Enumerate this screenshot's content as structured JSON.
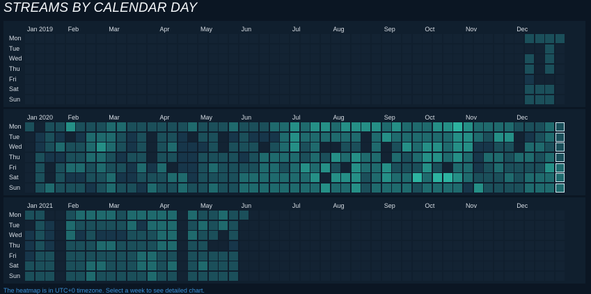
{
  "title": "STREAMS BY CALENDAR DAY",
  "footer": "The heatmap is in UTC+0 timezone. Select a week to see detailed chart.",
  "colors": {
    "background": "#0b1623",
    "panel": "#101f2e",
    "empty_cell": "#132333",
    "scale": [
      "#17364a",
      "#1b4f5a",
      "#1f6a6d",
      "#258f86",
      "#2db3a0",
      "#35d8b6"
    ],
    "selected_outline": "#cfe8f0",
    "footer_text": "#3a8fd6"
  },
  "chart_data": {
    "type": "heatmap",
    "title": "STREAMS BY CALENDAR DAY",
    "value_scale": [
      0,
      6
    ],
    "day_labels": [
      "Mon",
      "Tue",
      "Wed",
      "Thu",
      "Fri",
      "Sat",
      "Sun"
    ],
    "years": [
      {
        "year": 2019,
        "month_labels": [
          "Jan 2019",
          "Feb",
          "Mar",
          "Apr",
          "May",
          "Jun",
          "Jul",
          "Aug",
          "Sep",
          "Oct",
          "Nov",
          "Dec"
        ],
        "month_start_weeks": [
          0,
          4,
          8,
          13,
          17,
          21,
          26,
          30,
          35,
          39,
          43,
          48
        ],
        "selected_week": -1,
        "weeks": [
          "0000000",
          "0000000",
          "0000000",
          "0000000",
          "0000000",
          "0000000",
          "0000000",
          "0000000",
          "0000000",
          "0000000",
          "0000000",
          "0000000",
          "0000000",
          "0000000",
          "0000000",
          "0000000",
          "0000000",
          "0000000",
          "0000000",
          "0000000",
          "0000000",
          "0000000",
          "0000000",
          "0000000",
          "0000000",
          "0000000",
          "0000000",
          "0000000",
          "0000000",
          "0000000",
          "0000000",
          "0000000",
          "0000000",
          "0000000",
          "0000000",
          "0000000",
          "0000000",
          "0000000",
          "0000000",
          "0000000",
          "0000000",
          "0000000",
          "0000000",
          "0000000",
          "0000000",
          "0000000",
          "0000000",
          "0000000",
          "0000000",
          "2022122",
          "2000022",
          "2222022",
          "2000000"
        ]
      },
      {
        "year": 2020,
        "month_labels": [
          "Jan 2020",
          "Feb",
          "Mar",
          "Apr",
          "May",
          "Jun",
          "Jul",
          "Aug",
          "Sep",
          "Oct",
          "Nov",
          "Dec"
        ],
        "month_start_weeks": [
          0,
          4,
          8,
          13,
          17,
          21,
          26,
          30,
          35,
          39,
          43,
          48
        ],
        "selected_week": 52,
        "weeks": [
          "2000000",
          "0112222",
          "2221003",
          "2131222",
          "4022312",
          "2122312",
          "2333221",
          "2343322",
          "3332233",
          "3221212",
          "2112112",
          "2222321",
          "2000123",
          "2222322",
          "2232032",
          "2111133",
          "3011112",
          "2212222",
          "2222323",
          "2002222",
          "3122222",
          "2221233",
          "2122233",
          "2103333",
          "3123333",
          "3333233",
          "4443333",
          "3322433",
          "4333343",
          "4302404",
          "3304243",
          "4323043",
          "4324444",
          "4003322",
          "4333333",
          "3400443",
          "4323233",
          "3342233",
          "3333252",
          "3344433",
          "4344253",
          "4333053",
          "5444343",
          "4443331",
          "3311124",
          "3213222",
          "3423322",
          "3422232",
          "2003222",
          "2133233",
          "2232233",
          "3323433",
          "2222333"
        ]
      },
      {
        "year": 2021,
        "month_labels": [
          "Jan 2021",
          "Feb",
          "Mar",
          "Apr",
          "May",
          "Jun",
          "Jul",
          "Aug",
          "Sep",
          "Oct",
          "Nov",
          "Dec"
        ],
        "month_start_weeks": [
          0,
          4,
          8,
          13,
          17,
          21,
          26,
          30,
          35,
          39,
          43,
          48
        ],
        "selected_week": -1,
        "weeks": [
          "2011122",
          "2222222",
          "0111222",
          "0000000",
          "2332222",
          "3212222",
          "3222233",
          "3213232",
          "3213222",
          "2212222",
          "3322222",
          "3122332",
          "3322333",
          "3333222",
          "3333232",
          "0000000",
          "3232222",
          "2322232",
          "2220222",
          "3300222",
          "2221222",
          "2000000",
          "0000000",
          "0000000",
          "0000000",
          "0000000",
          "0000000",
          "0000000",
          "0000000",
          "0000000",
          "0000000",
          "0000000",
          "0000000",
          "0000000",
          "0000000",
          "0000000",
          "0000000",
          "0000000",
          "0000000",
          "0000000",
          "0000000",
          "0000000",
          "0000000",
          "0000000",
          "0000000",
          "0000000",
          "0000000",
          "0000000",
          "0000000",
          "0000000",
          "0000000",
          "0000000",
          "0000000"
        ]
      }
    ]
  }
}
